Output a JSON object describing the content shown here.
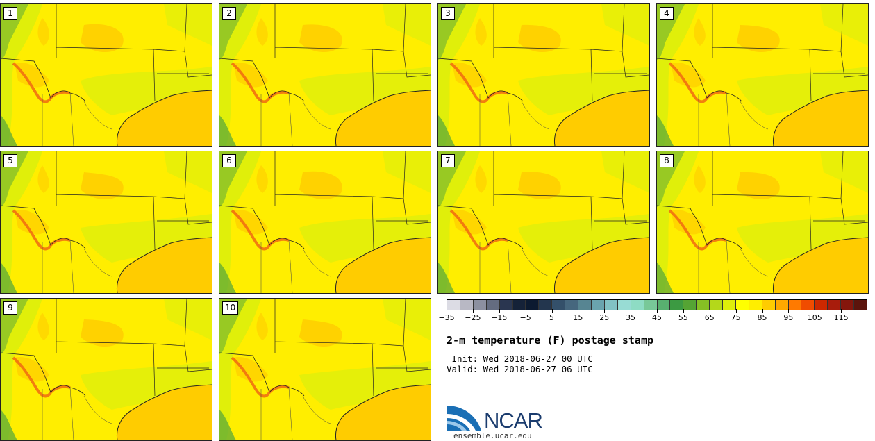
{
  "panels": [
    {
      "label": "1"
    },
    {
      "label": "2"
    },
    {
      "label": "3"
    },
    {
      "label": "4"
    },
    {
      "label": "5"
    },
    {
      "label": "6"
    },
    {
      "label": "7"
    },
    {
      "label": "8"
    },
    {
      "label": "9"
    },
    {
      "label": "10"
    }
  ],
  "colorbar": {
    "colors": [
      "#dcdce4",
      "#b8b8c4",
      "#8c90a0",
      "#646c80",
      "#2a3650",
      "#152238",
      "#0c1a30",
      "#23364e",
      "#34506a",
      "#46677e",
      "#578592",
      "#6aa4ae",
      "#82c2c4",
      "#98dcd4",
      "#8edcc4",
      "#78c898",
      "#58b070",
      "#3c9a42",
      "#55a434",
      "#86c024",
      "#b4d81a",
      "#deee0a",
      "#ffff00",
      "#ffee00",
      "#ffcc00",
      "#ffa800",
      "#ff7a00",
      "#f04c00",
      "#cc2800",
      "#a81c0c",
      "#84160c",
      "#5c140c"
    ],
    "tick_labels": [
      "−35",
      "−25",
      "−15",
      "−5",
      "5",
      "15",
      "25",
      "35",
      "45",
      "55",
      "65",
      "75",
      "85",
      "95",
      "105",
      "115"
    ]
  },
  "title": "2-m temperature (F) postage stamp",
  "init_line": " Init: Wed 2018-06-27 00 UTC",
  "valid_line": "Valid: Wed 2018-06-27 06 UTC",
  "logo": {
    "text": "NCAR",
    "url": "ensemble.ucar.edu",
    "color": "#1b3c6e"
  },
  "map_colors": {
    "base": "#ffee00",
    "warm": "#ffcc00",
    "mild": "#e0ef0a",
    "cool": "#5caa38",
    "hot": "#f06a10",
    "gulf": "#ffcc00"
  }
}
